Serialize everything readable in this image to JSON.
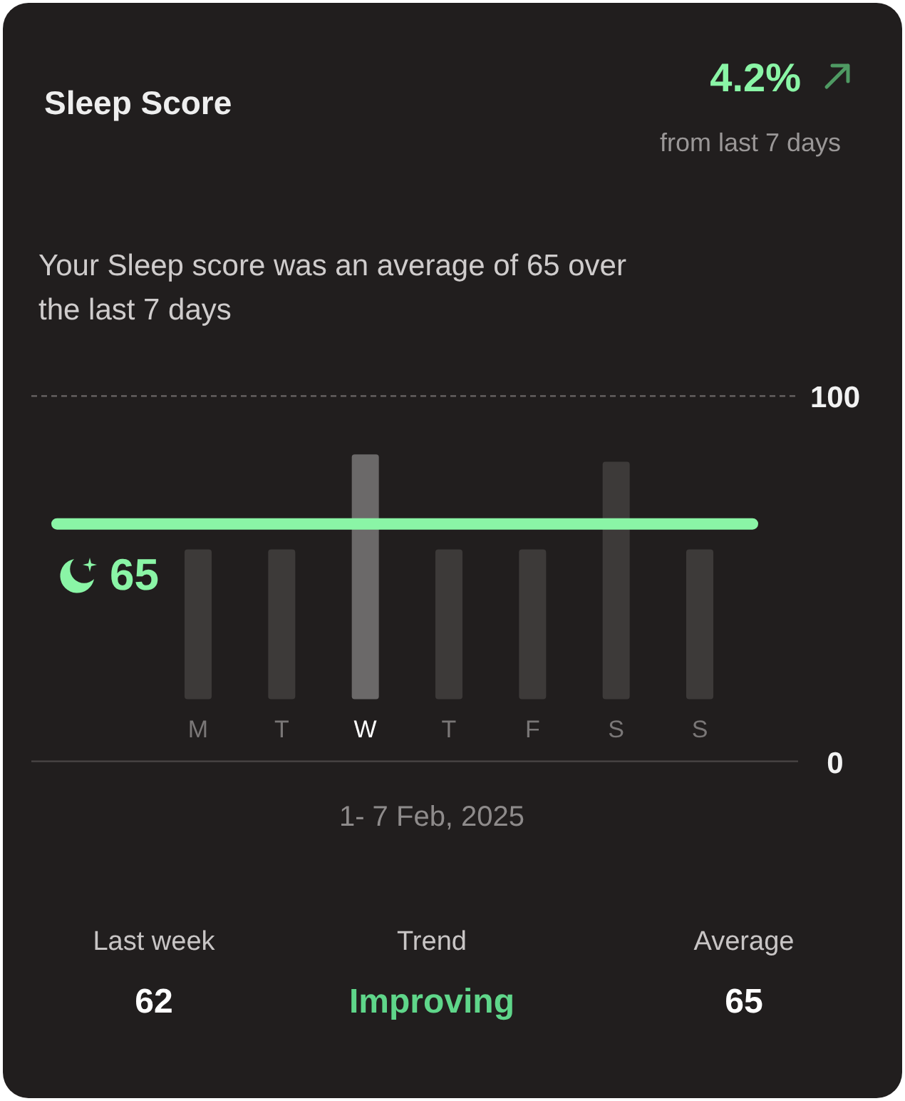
{
  "chart_data": {
    "type": "bar",
    "title": "Sleep Score",
    "subtitle": "Your Sleep score was an average of 65 over the last 7 days",
    "xlabel": "1- 7 Feb, 2025",
    "categories": [
      "M",
      "T",
      "W",
      "T",
      "F",
      "S",
      "S"
    ],
    "values": [
      41,
      41,
      67,
      41,
      41,
      65,
      41
    ],
    "base": [
      17,
      17,
      17,
      17,
      17,
      17,
      17
    ],
    "colors": [
      "#3d3a39",
      "#3d3a39",
      "#6b6969",
      "#3d3a39",
      "#3d3a39",
      "#3d3a39",
      "#3d3a39"
    ],
    "ylim": [
      0,
      100
    ],
    "yticks": [
      0,
      100
    ],
    "ref_lines": [
      {
        "axis": "y",
        "value": 65,
        "label": "65",
        "color": "#8af5a6"
      }
    ],
    "annotations": [
      "4.2%",
      "from last 7 days",
      "Last week",
      "62",
      "Trend",
      "Improving",
      "Average",
      "65"
    ]
  }
}
